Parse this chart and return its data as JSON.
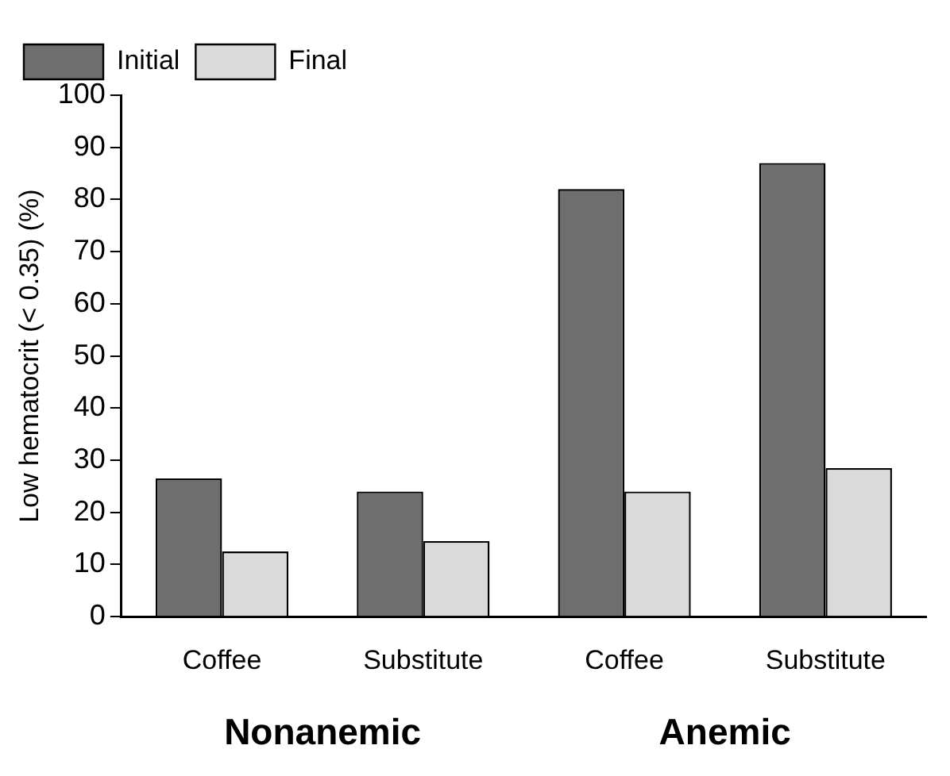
{
  "chart_data": {
    "type": "bar",
    "ylabel": "Low hematocrit (< 0.35) (%)",
    "categories": [
      "Coffee",
      "Substitute",
      "Coffee",
      "Substitute"
    ],
    "series": [
      {
        "name": "Initial",
        "color": "#6e6e6e",
        "values": [
          26.5,
          24,
          82,
          87
        ]
      },
      {
        "name": "Final",
        "color": "#dadada",
        "values": [
          12.5,
          14.5,
          24,
          28.5
        ]
      }
    ],
    "ylim": [
      0,
      100
    ],
    "yticks": [
      0,
      10,
      20,
      30,
      40,
      50,
      60,
      70,
      80,
      90,
      100
    ],
    "grid": false,
    "legend": "top left",
    "annotations": [
      "Nonanemic",
      "Anemic"
    ]
  }
}
